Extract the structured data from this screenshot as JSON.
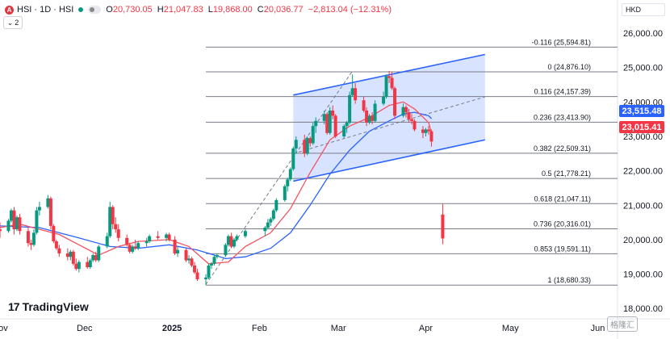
{
  "header": {
    "icon_letter": "A",
    "title": "HSI · 1D · HSI",
    "open_label": "O",
    "open": "20,730.05",
    "high_label": "H",
    "high": "21,047.83",
    "low_label": "L",
    "low": "19,868.00",
    "close_label": "C",
    "close": "20,036.77",
    "change": "−2,813.04 (−12.31%)"
  },
  "sub_label": "2",
  "currency": "HKD",
  "brand": "TradingView",
  "watermark": "格隆汇",
  "price_badges": [
    {
      "value": "23,515.48",
      "color": "#2962ff",
      "price": 23515.48
    },
    {
      "value": "23,015.41",
      "color": "#f23645",
      "price": 23015.41
    }
  ],
  "colors": {
    "up": "#089981",
    "down": "#f23645",
    "ma_fast": "#f7525f",
    "ma_slow": "#2962ff",
    "fib": "#787b86"
  },
  "chart_data": {
    "type": "candlestick",
    "y_axis": {
      "ticks": [
        18000,
        19000,
        20000,
        21000,
        22000,
        23000,
        24000,
        25000,
        26000
      ],
      "tick_labels": [
        "18,000.00",
        "19,000.00",
        "20,000.00",
        "21,000.00",
        "22,000.00",
        "23,000.00",
        "24,000.00",
        "25,000.00",
        "26,000.00"
      ],
      "range": [
        17700,
        26400
      ]
    },
    "x_axis": {
      "labels": [
        "Nov",
        "Dec",
        "2025",
        "Feb",
        "Mar",
        "Apr",
        "May",
        "Jun"
      ],
      "label_dates": [
        "2024-11-01",
        "2024-12-01",
        "2025-01-01",
        "2025-02-01",
        "2025-03-01",
        "2025-04-01",
        "2025-05-01",
        "2025-06-01"
      ],
      "range": [
        "2024-11-01",
        "2025-06-08"
      ]
    },
    "fibonacci": {
      "start_date": "2025-01-13",
      "end_date": "2025-05-20",
      "levels": [
        {
          "label": "-0.116 (25,594.81)",
          "price": 25594.81
        },
        {
          "label": "0 (24,876.10)",
          "price": 24876.1
        },
        {
          "label": "0.116 (24,157.39)",
          "price": 24157.39
        },
        {
          "label": "0.236 (23,413.90)",
          "price": 23413.9
        },
        {
          "label": "0.382 (22,509.31)",
          "price": 22509.31
        },
        {
          "label": "0.5 (21,778.21)",
          "price": 21778.21
        },
        {
          "label": "0.618 (21,047.11)",
          "price": 21047.11
        },
        {
          "label": "0.736 (20,316.01)",
          "price": 20316.01
        },
        {
          "label": "0.853 (19,591.11)",
          "price": 19591.11
        },
        {
          "label": "1 (18,680.33)",
          "price": 18680.33
        }
      ]
    },
    "channel": {
      "upper": [
        [
          "2025-02-13",
          24200
        ],
        [
          "2025-04-22",
          25380
        ]
      ],
      "lower": [
        [
          "2025-02-13",
          21700
        ],
        [
          "2025-04-22",
          22900
        ]
      ],
      "mid": [
        [
          "2025-02-13",
          22500
        ],
        [
          "2025-04-22",
          24150
        ]
      ]
    },
    "trend_dashed": [
      [
        "2025-01-13",
        18700
      ],
      [
        "2025-03-06",
        24900
      ]
    ],
    "ohlc": [
      [
        "2024-11-01",
        20300,
        20500,
        20050,
        20250
      ],
      [
        "2024-11-04",
        20250,
        20600,
        20200,
        20550
      ],
      [
        "2024-11-05",
        20550,
        20900,
        20500,
        20850
      ],
      [
        "2024-11-06",
        20850,
        20950,
        20150,
        20300
      ],
      [
        "2024-11-07",
        20300,
        20700,
        20250,
        20650
      ],
      [
        "2024-11-08",
        20650,
        20750,
        20150,
        20250
      ],
      [
        "2024-11-11",
        20250,
        20350,
        19800,
        19900
      ],
      [
        "2024-11-12",
        19900,
        20000,
        19700,
        19850
      ],
      [
        "2024-11-13",
        19850,
        20300,
        19800,
        20200
      ],
      [
        "2024-11-14",
        20200,
        20950,
        20150,
        20850
      ],
      [
        "2024-11-15",
        20850,
        21100,
        20700,
        20950
      ],
      [
        "2024-11-18",
        20950,
        21300,
        20900,
        21200
      ],
      [
        "2024-11-19",
        21200,
        21250,
        20300,
        20400
      ],
      [
        "2024-11-20",
        20400,
        20450,
        19900,
        19950
      ],
      [
        "2024-11-21",
        19950,
        20000,
        19700,
        19750
      ],
      [
        "2024-11-22",
        19750,
        19850,
        19500,
        19600
      ],
      [
        "2024-11-25",
        19600,
        19750,
        19400,
        19500
      ],
      [
        "2024-11-26",
        19500,
        19700,
        19400,
        19650
      ],
      [
        "2024-11-27",
        19650,
        19700,
        19250,
        19300
      ],
      [
        "2024-11-28",
        19300,
        19450,
        19100,
        19150
      ],
      [
        "2024-11-29",
        19150,
        19400,
        19050,
        19350
      ],
      [
        "2024-12-02",
        19350,
        19500,
        19150,
        19200
      ],
      [
        "2024-12-03",
        19200,
        19450,
        19150,
        19400
      ],
      [
        "2024-12-04",
        19400,
        19600,
        19350,
        19550
      ],
      [
        "2024-12-05",
        19550,
        19650,
        19350,
        19400
      ],
      [
        "2024-12-06",
        19400,
        19850,
        19350,
        19800
      ],
      [
        "2024-12-09",
        19800,
        20200,
        19750,
        20100
      ],
      [
        "2024-12-10",
        20100,
        21100,
        20050,
        20950
      ],
      [
        "2024-12-11",
        20950,
        21000,
        20300,
        20450
      ],
      [
        "2024-12-12",
        20450,
        20650,
        20200,
        20300
      ],
      [
        "2024-12-13",
        20300,
        20450,
        19950,
        20050
      ],
      [
        "2024-12-16",
        20050,
        20150,
        19800,
        19850
      ],
      [
        "2024-12-17",
        19850,
        19900,
        19600,
        19650
      ],
      [
        "2024-12-18",
        19650,
        19850,
        19600,
        19800
      ],
      [
        "2024-12-19",
        19800,
        20000,
        19700,
        19750
      ],
      [
        "2024-12-20",
        19750,
        19950,
        19700,
        19900
      ],
      [
        "2024-12-23",
        19900,
        20050,
        19800,
        19950
      ],
      [
        "2024-12-24",
        19950,
        20150,
        19900,
        20100
      ],
      [
        "2024-12-27",
        20100,
        20250,
        20000,
        20050
      ],
      [
        "2024-12-30",
        20050,
        20200,
        19950,
        20150
      ],
      [
        "2024-12-31",
        20150,
        20200,
        19950,
        20000
      ],
      [
        "2025-01-02",
        20000,
        20100,
        19550,
        19600
      ],
      [
        "2025-01-03",
        19600,
        19800,
        19500,
        19700
      ],
      [
        "2025-01-06",
        19700,
        19750,
        19350,
        19400
      ],
      [
        "2025-01-07",
        19400,
        19550,
        19300,
        19450
      ],
      [
        "2025-01-08",
        19450,
        19500,
        19200,
        19250
      ],
      [
        "2025-01-09",
        19250,
        19350,
        19000,
        19050
      ],
      [
        "2025-01-10",
        19050,
        19150,
        18800,
        18850
      ],
      [
        "2025-01-13",
        18850,
        19000,
        18680,
        18900
      ],
      [
        "2025-01-14",
        18900,
        19300,
        18850,
        19250
      ],
      [
        "2025-01-15",
        19250,
        19350,
        19150,
        19300
      ],
      [
        "2025-01-16",
        19300,
        19550,
        19250,
        19500
      ],
      [
        "2025-01-17",
        19500,
        19600,
        19450,
        19550
      ],
      [
        "2025-01-20",
        19550,
        19900,
        19500,
        19850
      ],
      [
        "2025-01-21",
        19850,
        20150,
        19800,
        20100
      ],
      [
        "2025-01-22",
        20100,
        20200,
        19750,
        19800
      ],
      [
        "2025-01-23",
        19800,
        20050,
        19750,
        20000
      ],
      [
        "2025-01-24",
        20000,
        20150,
        19950,
        20100
      ],
      [
        "2025-01-27",
        20100,
        20300,
        20050,
        20250
      ],
      [
        "2025-02-03",
        20250,
        20400,
        20100,
        20350
      ],
      [
        "2025-02-04",
        20350,
        20600,
        20300,
        20500
      ],
      [
        "2025-02-05",
        20500,
        20650,
        20400,
        20600
      ],
      [
        "2025-02-06",
        20600,
        20900,
        20550,
        20850
      ],
      [
        "2025-02-07",
        20850,
        21200,
        20800,
        21150
      ],
      [
        "2025-02-10",
        21150,
        21600,
        21100,
        21550
      ],
      [
        "2025-02-11",
        21550,
        21800,
        21400,
        21750
      ],
      [
        "2025-02-12",
        21750,
        22100,
        21700,
        22050
      ],
      [
        "2025-02-13",
        22050,
        22700,
        22000,
        22650
      ],
      [
        "2025-02-14",
        22650,
        23000,
        22500,
        22900
      ],
      [
        "2025-02-17",
        22900,
        23050,
        22400,
        22500
      ],
      [
        "2025-02-18",
        22500,
        23000,
        22450,
        22950
      ],
      [
        "2025-02-19",
        22950,
        23000,
        22700,
        22800
      ],
      [
        "2025-02-20",
        22800,
        23400,
        22750,
        23300
      ],
      [
        "2025-02-21",
        23300,
        23550,
        23100,
        23450
      ],
      [
        "2025-02-24",
        23450,
        23750,
        23350,
        23650
      ],
      [
        "2025-02-25",
        23650,
        23700,
        23050,
        23100
      ],
      [
        "2025-02-26",
        23100,
        23850,
        23050,
        23750
      ],
      [
        "2025-02-27",
        23750,
        23900,
        23500,
        23600
      ],
      [
        "2025-02-28",
        23600,
        23650,
        22950,
        23000
      ],
      [
        "2025-03-03",
        23000,
        23350,
        22950,
        23300
      ],
      [
        "2025-03-04",
        23300,
        23450,
        23100,
        23400
      ],
      [
        "2025-03-05",
        23400,
        24300,
        23350,
        24200
      ],
      [
        "2025-03-06",
        24200,
        24800,
        24150,
        24400
      ],
      [
        "2025-03-07",
        24400,
        24550,
        23950,
        24050
      ],
      [
        "2025-03-10",
        24050,
        24150,
        23700,
        23750
      ],
      [
        "2025-03-11",
        23750,
        23850,
        23300,
        23400
      ],
      [
        "2025-03-12",
        23400,
        23650,
        23350,
        23600
      ],
      [
        "2025-03-13",
        23600,
        23700,
        23350,
        23450
      ],
      [
        "2025-03-14",
        23450,
        24050,
        23400,
        23950
      ],
      [
        "2025-03-17",
        23950,
        24300,
        23900,
        24150
      ],
      [
        "2025-03-18",
        24150,
        24800,
        24100,
        24750
      ],
      [
        "2025-03-19",
        24750,
        24900,
        24550,
        24700
      ],
      [
        "2025-03-20",
        24700,
        24876,
        24350,
        24400
      ],
      [
        "2025-03-21",
        24400,
        24450,
        23500,
        23600
      ],
      [
        "2025-03-24",
        23600,
        23950,
        23550,
        23850
      ],
      [
        "2025-03-25",
        23850,
        23900,
        23550,
        23700
      ],
      [
        "2025-03-26",
        23700,
        23800,
        23400,
        23500
      ],
      [
        "2025-03-27",
        23500,
        23650,
        23350,
        23450
      ],
      [
        "2025-03-28",
        23450,
        23500,
        23150,
        23200
      ],
      [
        "2025-03-31",
        23200,
        23300,
        22950,
        23100
      ],
      [
        "2025-04-01",
        23100,
        23250,
        23000,
        23200
      ],
      [
        "2025-04-02",
        23200,
        23300,
        23050,
        23150
      ],
      [
        "2025-04-03",
        23150,
        23200,
        22700,
        22850
      ],
      [
        "2025-04-07",
        20730,
        21048,
        19868,
        20037
      ]
    ],
    "ma_fast": [
      [
        "2024-11-01",
        20350
      ],
      [
        "2024-11-08",
        20450
      ],
      [
        "2024-11-15",
        20300
      ],
      [
        "2024-11-22",
        20150
      ],
      [
        "2024-11-29",
        19850
      ],
      [
        "2024-12-06",
        19550
      ],
      [
        "2024-12-13",
        19800
      ],
      [
        "2024-12-20",
        19950
      ],
      [
        "2024-12-31",
        20000
      ],
      [
        "2025-01-07",
        19800
      ],
      [
        "2025-01-14",
        19300
      ],
      [
        "2025-01-21",
        19350
      ],
      [
        "2025-01-27",
        19800
      ],
      [
        "2025-02-05",
        20200
      ],
      [
        "2025-02-12",
        20900
      ],
      [
        "2025-02-19",
        21950
      ],
      [
        "2025-02-26",
        22900
      ],
      [
        "2025-03-05",
        23300
      ],
      [
        "2025-03-12",
        23550
      ],
      [
        "2025-03-19",
        23900
      ],
      [
        "2025-03-24",
        24000
      ],
      [
        "2025-03-28",
        23800
      ],
      [
        "2025-04-02",
        23400
      ],
      [
        "2025-04-03",
        23100
      ]
    ],
    "ma_slow": [
      [
        "2024-11-01",
        20400
      ],
      [
        "2024-11-15",
        20350
      ],
      [
        "2024-11-29",
        20050
      ],
      [
        "2024-12-10",
        19800
      ],
      [
        "2024-12-20",
        19750
      ],
      [
        "2024-12-31",
        19850
      ],
      [
        "2025-01-10",
        19700
      ],
      [
        "2025-01-20",
        19450
      ],
      [
        "2025-01-27",
        19500
      ],
      [
        "2025-02-05",
        19750
      ],
      [
        "2025-02-12",
        20200
      ],
      [
        "2025-02-19",
        21000
      ],
      [
        "2025-02-26",
        21900
      ],
      [
        "2025-03-05",
        22600
      ],
      [
        "2025-03-12",
        23150
      ],
      [
        "2025-03-19",
        23450
      ],
      [
        "2025-03-24",
        23650
      ],
      [
        "2025-03-28",
        23700
      ],
      [
        "2025-04-02",
        23600
      ],
      [
        "2025-04-03",
        23515
      ]
    ]
  }
}
